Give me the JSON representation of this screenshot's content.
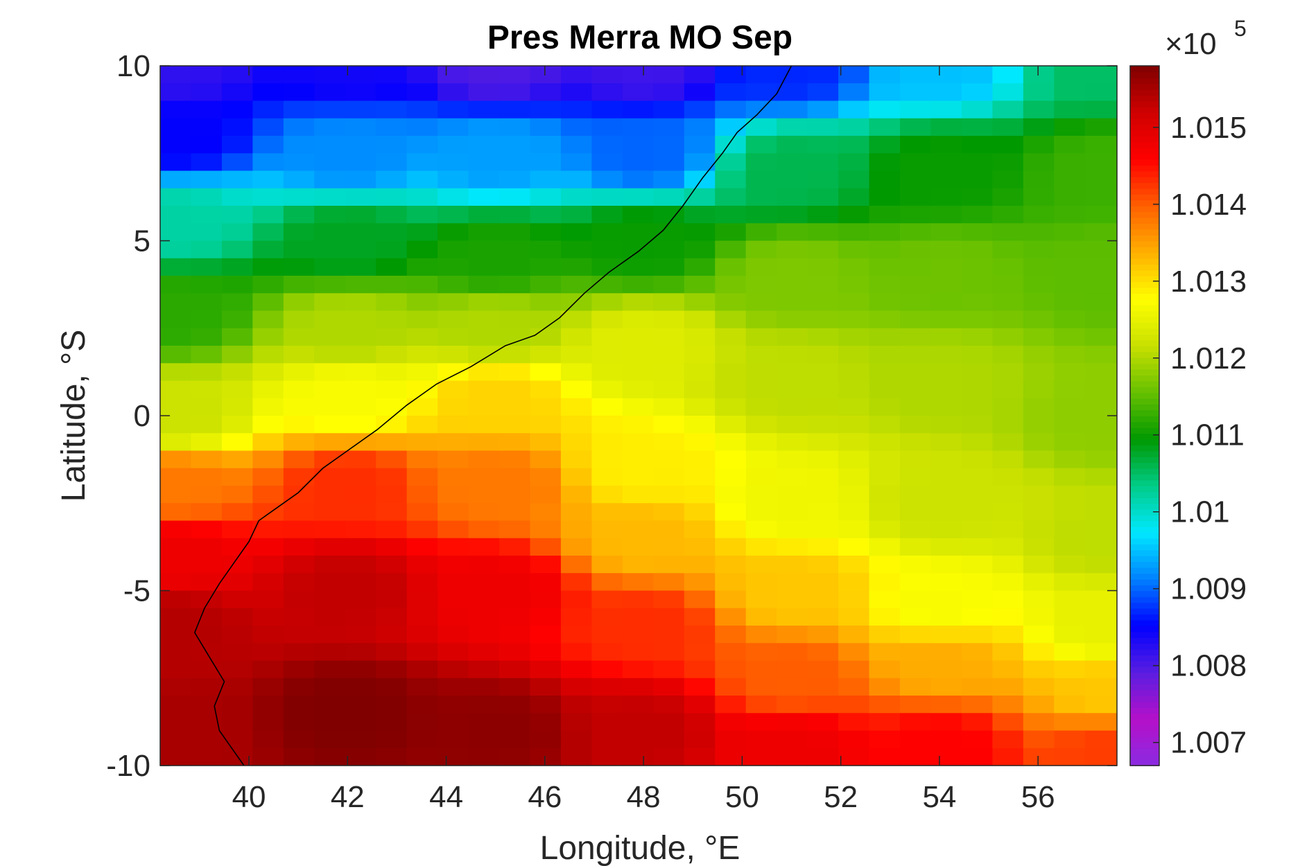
{
  "chart_data": {
    "type": "heatmap",
    "title": "Pres Merra MO Sep",
    "xlabel": "Longitude, °E",
    "ylabel": "Latitude, °S",
    "xlim": [
      38.2,
      57.6
    ],
    "ylim": [
      -10,
      10
    ],
    "x_ticks": [
      40,
      42,
      44,
      46,
      48,
      50,
      52,
      54,
      56
    ],
    "x_tick_labels": [
      "40",
      "42",
      "44",
      "46",
      "48",
      "50",
      "52",
      "54",
      "56"
    ],
    "y_ticks": [
      10,
      5,
      0,
      -5,
      -10
    ],
    "y_tick_labels": [
      "10",
      "5",
      "0",
      "-5",
      "-10"
    ],
    "colorbar": {
      "range": [
        1.0067,
        1.0158
      ],
      "ticks": [
        1.015,
        1.014,
        1.013,
        1.012,
        1.011,
        1.01,
        1.009,
        1.008,
        1.007
      ],
      "tick_labels": [
        "1.015",
        "1.014",
        "1.013",
        "1.012",
        "1.011",
        "1.01",
        "1.009",
        "1.008",
        "1.007"
      ],
      "exponent_base": "×10",
      "exponent_power": "5",
      "colormap": [
        "#8a2be2",
        "#b510c8",
        "#5a1ee0",
        "#0000ff",
        "#0080ff",
        "#00e8ff",
        "#00cc88",
        "#009900",
        "#66c000",
        "#c8e000",
        "#ffff00",
        "#ffb000",
        "#ff6000",
        "#ff0000",
        "#d00000",
        "#800000"
      ]
    },
    "field": {
      "description_units": "x 1e5 Pa",
      "lon_step": 0.625,
      "lat_step": 0.5,
      "control_points": [
        {
          "lon": 38.5,
          "lat": 10,
          "value": 1.0082
        },
        {
          "lon": 38.5,
          "lat": 8,
          "value": 1.0085
        },
        {
          "lon": 38.5,
          "lat": 5.5,
          "value": 1.0102
        },
        {
          "lon": 38.5,
          "lat": 3,
          "value": 1.0112
        },
        {
          "lon": 38.5,
          "lat": 0,
          "value": 1.0122
        },
        {
          "lon": 38.5,
          "lat": -2,
          "value": 1.0138
        },
        {
          "lon": 38.5,
          "lat": -4,
          "value": 1.0148
        },
        {
          "lon": 38.5,
          "lat": -6,
          "value": 1.0154
        },
        {
          "lon": 38.5,
          "lat": -9,
          "value": 1.0155
        },
        {
          "lon": 42,
          "lat": 10,
          "value": 1.0084
        },
        {
          "lon": 42,
          "lat": 7.5,
          "value": 1.0092
        },
        {
          "lon": 42,
          "lat": 5,
          "value": 1.0108
        },
        {
          "lon": 42,
          "lat": 2.5,
          "value": 1.012
        },
        {
          "lon": 42,
          "lat": 0.5,
          "value": 1.0127
        },
        {
          "lon": 42,
          "lat": -2,
          "value": 1.0143
        },
        {
          "lon": 42,
          "lat": -5,
          "value": 1.0153
        },
        {
          "lon": 42,
          "lat": -8.5,
          "value": 1.0158
        },
        {
          "lon": 45,
          "lat": 10,
          "value": 1.008
        },
        {
          "lon": 45,
          "lat": 7.5,
          "value": 1.0093
        },
        {
          "lon": 45,
          "lat": 4.5,
          "value": 1.0111
        },
        {
          "lon": 45,
          "lat": 2.5,
          "value": 1.012
        },
        {
          "lon": 45,
          "lat": 0.5,
          "value": 1.0131
        },
        {
          "lon": 45,
          "lat": -2,
          "value": 1.0138
        },
        {
          "lon": 45,
          "lat": -5,
          "value": 1.0148
        },
        {
          "lon": 45,
          "lat": -9,
          "value": 1.0157
        },
        {
          "lon": 48,
          "lat": 10,
          "value": 1.0081
        },
        {
          "lon": 48,
          "lat": 7.5,
          "value": 1.009
        },
        {
          "lon": 48,
          "lat": 5,
          "value": 1.011
        },
        {
          "lon": 48,
          "lat": 2,
          "value": 1.0124
        },
        {
          "lon": 48,
          "lat": -1.5,
          "value": 1.0129
        },
        {
          "lon": 48,
          "lat": -3.5,
          "value": 1.0133
        },
        {
          "lon": 48,
          "lat": -6,
          "value": 1.0143
        },
        {
          "lon": 48,
          "lat": -9,
          "value": 1.0153
        },
        {
          "lon": 51,
          "lat": 10,
          "value": 1.0087
        },
        {
          "lon": 51,
          "lat": 7,
          "value": 1.0106
        },
        {
          "lon": 51,
          "lat": 4,
          "value": 1.0117
        },
        {
          "lon": 51,
          "lat": 1,
          "value": 1.0121
        },
        {
          "lon": 51,
          "lat": -2.5,
          "value": 1.0126
        },
        {
          "lon": 51,
          "lat": -5,
          "value": 1.0132
        },
        {
          "lon": 51,
          "lat": -7.5,
          "value": 1.014
        },
        {
          "lon": 51,
          "lat": -9.5,
          "value": 1.0148
        },
        {
          "lon": 54,
          "lat": 10,
          "value": 1.0095
        },
        {
          "lon": 54,
          "lat": 7,
          "value": 1.011
        },
        {
          "lon": 54,
          "lat": 4,
          "value": 1.0116
        },
        {
          "lon": 54,
          "lat": 1,
          "value": 1.012
        },
        {
          "lon": 54,
          "lat": -2.5,
          "value": 1.0122
        },
        {
          "lon": 54,
          "lat": -5.5,
          "value": 1.0127
        },
        {
          "lon": 54,
          "lat": -7,
          "value": 1.0134
        },
        {
          "lon": 54,
          "lat": -9.5,
          "value": 1.0146
        },
        {
          "lon": 57.4,
          "lat": 10,
          "value": 1.0105
        },
        {
          "lon": 57.4,
          "lat": 7,
          "value": 1.0113
        },
        {
          "lon": 57.4,
          "lat": 4,
          "value": 1.0115
        },
        {
          "lon": 57.4,
          "lat": 0,
          "value": 1.0118
        },
        {
          "lon": 57.4,
          "lat": -3.5,
          "value": 1.0121
        },
        {
          "lon": 57.4,
          "lat": -6,
          "value": 1.0125
        },
        {
          "lon": 57.4,
          "lat": -8,
          "value": 1.0132
        },
        {
          "lon": 57.4,
          "lat": -9.5,
          "value": 1.0142
        }
      ]
    },
    "coastline": [
      [
        51.0,
        10.0
      ],
      [
        50.7,
        9.2
      ],
      [
        50.3,
        8.6
      ],
      [
        49.9,
        8.1
      ],
      [
        49.6,
        7.5
      ],
      [
        49.2,
        6.8
      ],
      [
        48.8,
        6.0
      ],
      [
        48.4,
        5.3
      ],
      [
        47.9,
        4.7
      ],
      [
        47.3,
        4.1
      ],
      [
        46.8,
        3.5
      ],
      [
        46.3,
        2.8
      ],
      [
        45.8,
        2.3
      ],
      [
        45.2,
        2.0
      ],
      [
        44.5,
        1.4
      ],
      [
        43.8,
        0.9
      ],
      [
        43.2,
        0.3
      ],
      [
        42.6,
        -0.4
      ],
      [
        42.0,
        -1.0
      ],
      [
        41.5,
        -1.5
      ],
      [
        41.0,
        -2.2
      ],
      [
        40.6,
        -2.6
      ],
      [
        40.2,
        -3.0
      ],
      [
        40.0,
        -3.6
      ],
      [
        39.7,
        -4.2
      ],
      [
        39.4,
        -4.8
      ],
      [
        39.1,
        -5.5
      ],
      [
        38.9,
        -6.2
      ],
      [
        39.2,
        -6.9
      ],
      [
        39.5,
        -7.6
      ],
      [
        39.3,
        -8.3
      ],
      [
        39.4,
        -9.0
      ],
      [
        39.7,
        -9.6
      ],
      [
        39.9,
        -10.0
      ]
    ]
  }
}
